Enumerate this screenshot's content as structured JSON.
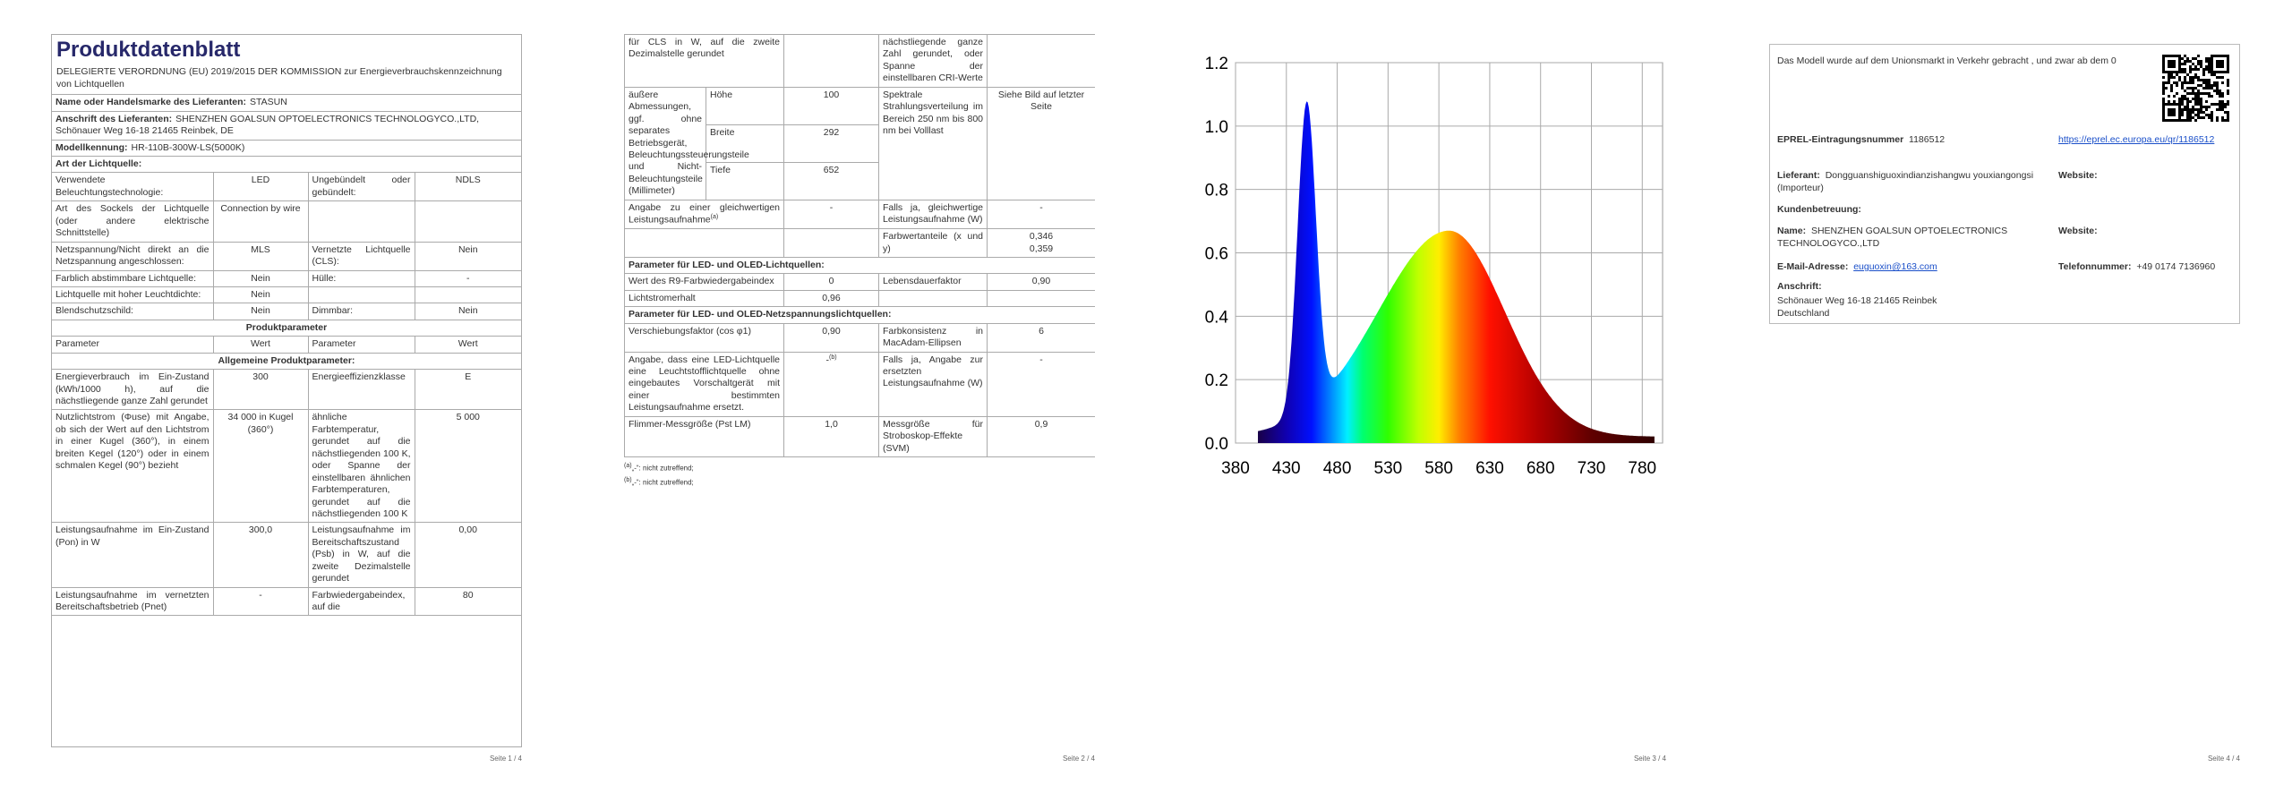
{
  "pages": [
    {
      "title": "Produktdatenblatt",
      "subtitle": "DELEGIERTE VERORDNUNG (EU) 2019/2015 DER KOMMISSION zur Energieverbrauchskennzeichnung von Lichtquellen",
      "rows": [
        {
          "label": "Name oder Handelsmarke des Lieferanten:",
          "value": "STASUN"
        },
        {
          "label": "Anschrift des Lieferanten:",
          "value": "SHENZHEN GOALSUN OPTOELECTRONICS TECHNOLOGYCO.,LTD, Schönauer Weg 16-18 21465 Reinbek, DE"
        },
        {
          "label": "Modellkennung:",
          "value": "HR-110B-300W-LS(5000K)"
        },
        {
          "section": "Art der Lichtquelle:"
        },
        {
          "cells": [
            "Verwendete Beleuchtungstechnologie:",
            "LED",
            "Ungebündelt oder gebündelt:",
            "NDLS"
          ]
        },
        {
          "cells": [
            "Art des Sockels der Lichtquelle (oder andere elektrische Schnittstelle)",
            "Connection by wire",
            null,
            null
          ]
        },
        {
          "cells": [
            "Netzspannung/Nicht direkt an die Netzspannung angeschlossen:",
            "MLS",
            "Vernetzte Lichtquelle (CLS):",
            "Nein"
          ]
        },
        {
          "cells": [
            "Farblich abstimmbare Lichtquelle:",
            "Nein",
            "Hülle:",
            "-"
          ]
        },
        {
          "cells": [
            "Lichtquelle mit hoher Leuchtdichte:",
            "Nein",
            null,
            null
          ]
        },
        {
          "cells": [
            "Blendschutzschild:",
            "Nein",
            "Dimmbar:",
            "Nein"
          ]
        },
        {
          "heading": "Produktparameter"
        },
        {
          "cells": [
            "Parameter",
            "Wert",
            "Parameter",
            "Wert"
          ]
        },
        {
          "heading": "Allgemeine Produktparameter:"
        },
        {
          "cells": [
            "Energieverbrauch im Ein-Zustand (kWh/1000 h), auf die nächstliegende ganze Zahl gerundet",
            "300",
            "Energieeffizienzklasse",
            "E"
          ]
        },
        {
          "cells": [
            "Nutzlichtstrom (Φuse) mit Angabe, ob sich der Wert auf den Lichtstrom in einer Kugel (360°), in einem breiten Kegel (120°) oder in einem schmalen Kegel (90°) bezieht",
            "34 000 in Kugel (360°)",
            "ähnliche Farbtemperatur, gerundet auf die nächstliegenden 100 K, oder Spanne der einstellbaren ähnlichen Farbtemperaturen, gerundet auf die nächstliegenden 100 K",
            "5 000"
          ]
        },
        {
          "cells": [
            "Leistungsaufnahme im Ein-Zustand (Pon) in W",
            "300,0",
            "Leistungsaufnahme im Bereitschaftszustand (Psb) in W, auf die zweite Dezimalstelle gerundet",
            "0,00"
          ]
        },
        {
          "cells": [
            "Leistungsaufnahme im vernetzten Bereitschaftsbetrieb (Pnet)",
            "-",
            "Farbwiedergabeindex, auf die",
            "80"
          ]
        }
      ],
      "footer": "Seite 1 / 4"
    },
    {
      "rows": [
        {
          "cells": [
            "für CLS in W, auf die zweite Dezimalstelle gerundet",
            null,
            "nächstliegende ganze Zahl gerundet, oder Spanne der einstellbaren CRI-Werte",
            null
          ]
        },
        {
          "cells": [
            "äußere Abmessungen, ggf. ohne separates Betriebsgerät, Beleuchtungssteuerungsteile und Nicht-Beleuchtungsteile (Millimeter)",
            {
              "dims": [
                {
                  "label": "Höhe",
                  "value": "100"
                },
                {
                  "label": "Breite",
                  "value": "292"
                },
                {
                  "label": "Tiefe",
                  "value": "652"
                }
              ]
            },
            "Spektrale Strahlungsverteilung im Bereich 250 nm bis 800 nm bei Volllast",
            "Siehe Bild auf letzter Seite"
          ]
        },
        {
          "cells": [
            {
              "text": "Angabe zu einer gleichwertigen Leistungsaufnahme",
              "note": "(a)"
            },
            "-",
            "Falls ja, gleichwertige Leistungsaufnahme (W)",
            "-"
          ]
        },
        {
          "cells": [
            null,
            null,
            "Farbwertanteile (x und y)",
            "0,346\n0,359"
          ]
        },
        {
          "section": "Parameter für LED- und OLED-Lichtquellen:"
        },
        {
          "cells": [
            "Wert des R9-Farbwiedergabeindex",
            "0",
            "Lebensdauerfaktor",
            "0,90"
          ]
        },
        {
          "cells": [
            "Lichtstromerhalt",
            "0,96",
            null,
            null
          ]
        },
        {
          "section": "Parameter für LED- und OLED-Netzspannungslichtquellen:"
        },
        {
          "cells": [
            "Verschiebungsfaktor (cos φ1)",
            "0,90",
            "Farbkonsistenz in MacAdam-Ellipsen",
            "6"
          ]
        },
        {
          "cells": [
            "Angabe, dass eine LED-Lichtquelle eine Leuchtstofflichtquelle ohne eingebautes Vorschaltgerät mit einer bestimmten Leistungsaufnahme ersetzt.",
            {
              "text": "-",
              "note": "(b)"
            },
            "Falls ja, Angabe zur ersetzten Leistungsaufnahme (W)",
            "-"
          ]
        },
        {
          "cells": [
            "Flimmer-Messgröße (Pst LM)",
            "1,0",
            "Messgröße für Stroboskop-Effekte (SVM)",
            "0,9"
          ]
        }
      ],
      "footnotes": [
        {
          "mark": "(a)",
          "text": "„-“: nicht zutreffend;"
        },
        {
          "mark": "(b)",
          "text": "„-“: nicht zutreffend;"
        }
      ],
      "footer": "Seite 2 / 4"
    },
    {
      "spectrum": {
        "xlim": [
          380,
          800
        ],
        "ylim": [
          0,
          1.2
        ],
        "xticks": [
          380,
          430,
          480,
          530,
          580,
          630,
          680,
          730,
          780
        ],
        "yticks": [
          {
            "value": 0,
            "label": "0.0"
          },
          {
            "value": 0.2,
            "label": "0.2"
          },
          {
            "value": 0.4,
            "label": "0.4"
          },
          {
            "value": 0.6,
            "label": "0.6"
          },
          {
            "value": 0.8,
            "label": "0.8"
          },
          {
            "value": 1,
            "label": "1.0"
          },
          {
            "value": 1.2,
            "label": "1.2"
          }
        ]
      },
      "footer": "Seite 3 / 4"
    },
    {
      "notice": "Das Modell wurde auf dem Unionsmarkt in Verkehr gebracht , und zwar ab dem 0",
      "eprel": {
        "label": "EPREL-Eintragungsnummer",
        "value": "1186512",
        "link": "https://eprel.ec.europa.eu/qr/1186512"
      },
      "supplier": {
        "label": "Lieferant:",
        "value": "Dongguanshiguoxindianzishangwu youxiangongsi (Importeur)",
        "website": "Website:"
      },
      "support": "Kundenbetreuung:",
      "name": {
        "label": "Name:",
        "value": "SHENZHEN GOALSUN OPTOELECTRONICS TECHNOLOGYCO.,LTD",
        "website": "Website:"
      },
      "email": {
        "label": "E-Mail-Adresse:",
        "value": "euguoxin@163.com"
      },
      "phone": {
        "label": "Telefonnummer:",
        "value": "+49 0174 7136960"
      },
      "address": {
        "label": "Anschrift:",
        "value": "Schönauer Weg 16-18 21465 Reinbek\nDeutschland"
      },
      "footer": "Seite 4 / 4"
    }
  ]
}
